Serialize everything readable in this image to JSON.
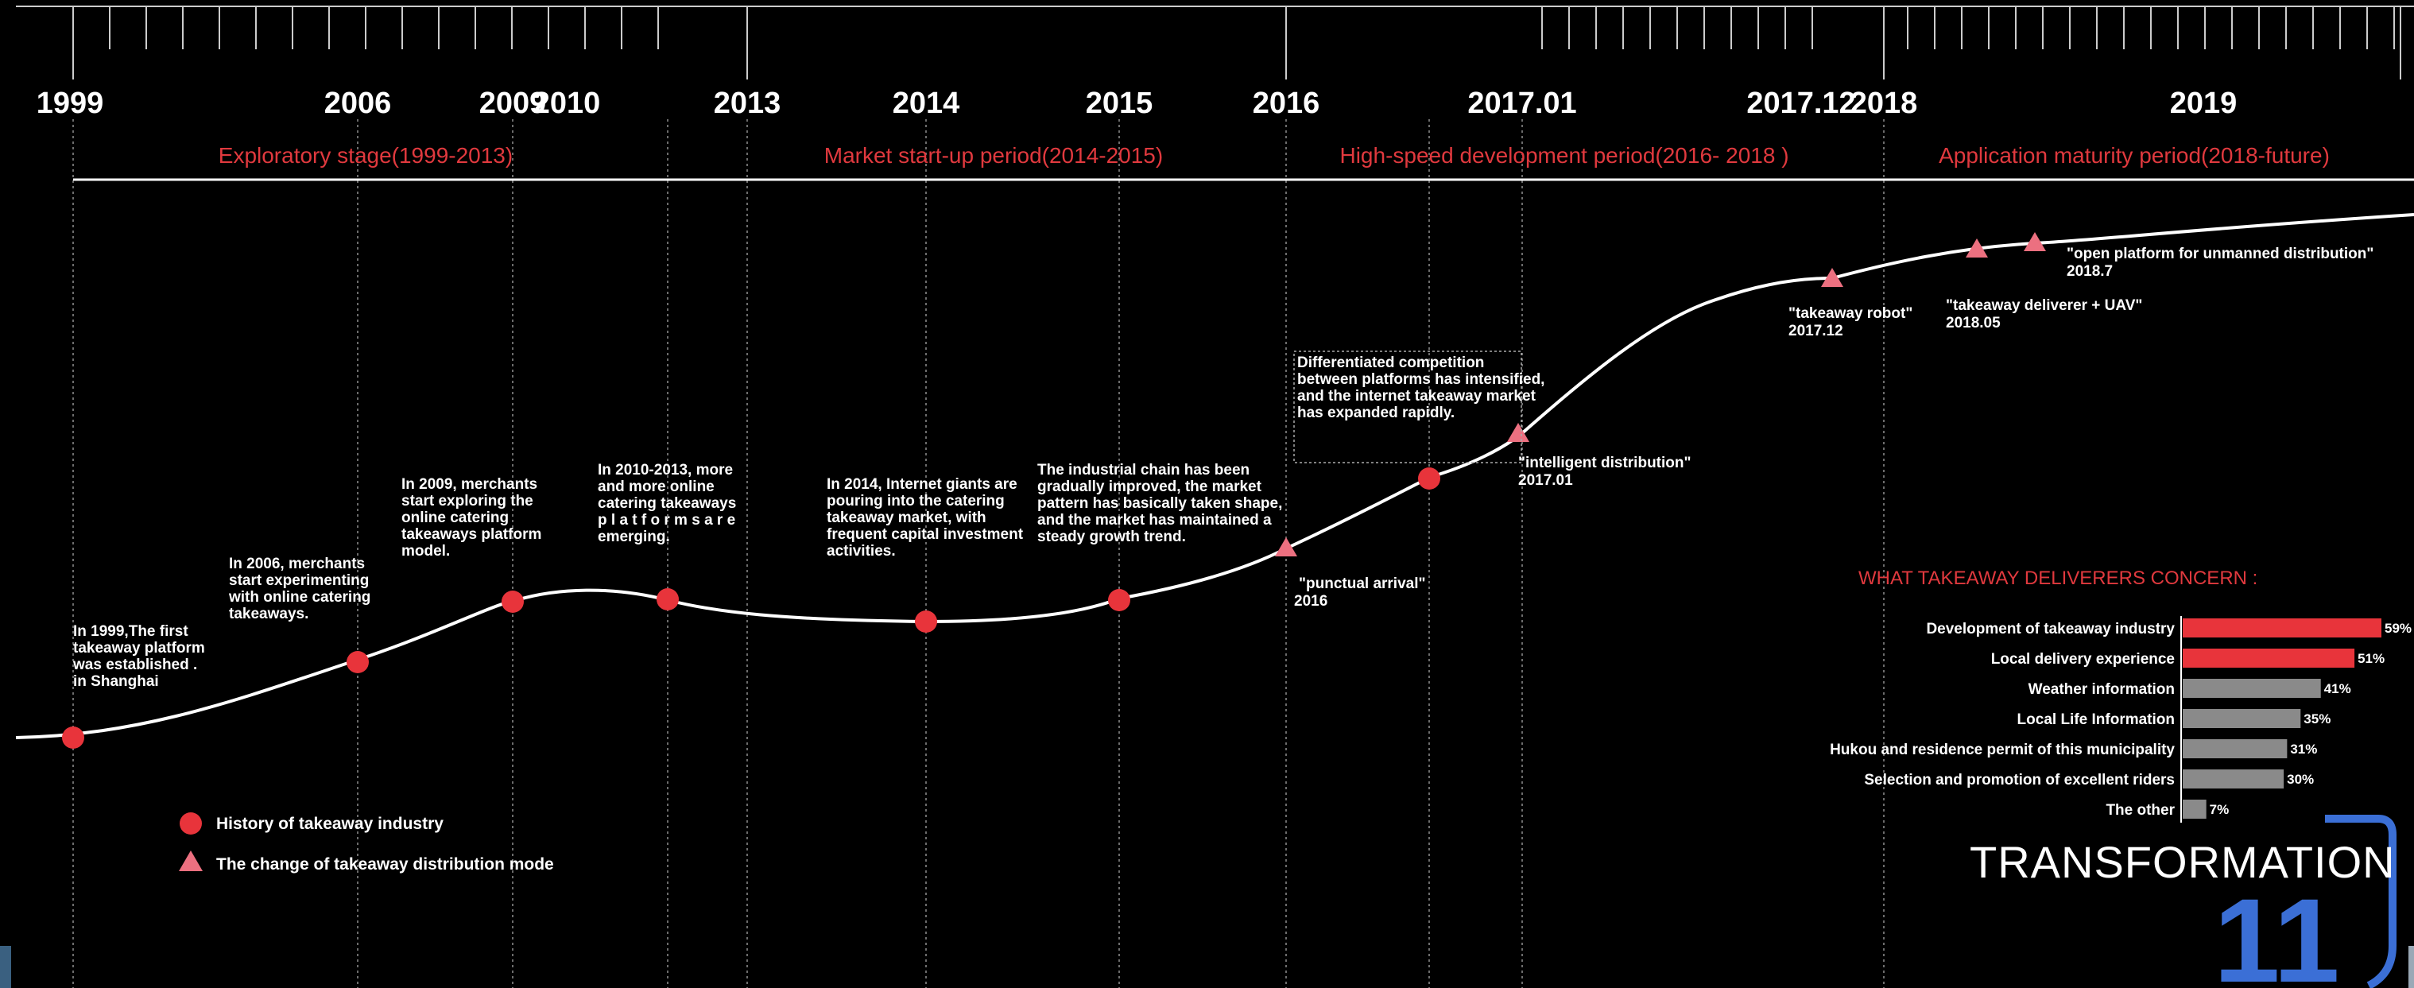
{
  "years": [
    {
      "id": "y1999",
      "label": "1999"
    },
    {
      "id": "y2006",
      "label": "2006"
    },
    {
      "id": "y2009",
      "label": "2009"
    },
    {
      "id": "y2010",
      "label": "2010"
    },
    {
      "id": "y2013",
      "label": "2013"
    },
    {
      "id": "y2014",
      "label": "2014"
    },
    {
      "id": "y2015",
      "label": "2015"
    },
    {
      "id": "y2016",
      "label": "2016"
    },
    {
      "id": "y201701",
      "label": "2017.01"
    },
    {
      "id": "y201712",
      "label": "2017.12"
    },
    {
      "id": "y2018",
      "label": "2018"
    },
    {
      "id": "y2019",
      "label": "2019"
    }
  ],
  "stages": [
    "Exploratory stage(1999-2013)",
    "Market start-up period(2014-2015)",
    "High-speed development period(2016- 2018 )",
    "Application maturity period(2018-future)"
  ],
  "history_events": [
    {
      "year": "1999",
      "lines": [
        "In 1999,The first",
        "takeaway platform",
        "was established .",
        "in Shanghai"
      ]
    },
    {
      "year": "2006",
      "lines": [
        "In 2006, merchants",
        "start experimenting",
        "with online catering",
        "takeaways."
      ]
    },
    {
      "year": "2009",
      "lines": [
        "In 2009, merchants",
        "start exploring the",
        "online catering",
        "takeaways platform",
        "model."
      ]
    },
    {
      "year": "2010-2013",
      "lines": [
        "In 2010-2013, more",
        "and more online",
        "catering takeaways",
        "p l a t f o r m s  a r e",
        "emerging."
      ]
    },
    {
      "year": "2014",
      "lines": [
        "In 2014, Internet giants are",
        "pouring into the catering",
        "takeaway market, with",
        "frequent capital investment",
        "activities."
      ]
    },
    {
      "year": "2015",
      "lines": [
        "The industrial chain has been",
        "gradually improved, the market",
        "pattern has basically taken shape,",
        "and the market has maintained a",
        "steady growth trend."
      ]
    },
    {
      "year": "2016",
      "lines": [
        "Differentiated competition",
        "between platforms has intensified,",
        "and the internet takeaway market",
        "has expanded rapidly."
      ]
    }
  ],
  "distribution_modes": [
    {
      "name": "\"punctual arrival\"",
      "date": "2016"
    },
    {
      "name": "\"intelligent distribution\"",
      "date": "2017.01"
    },
    {
      "name": "\"takeaway robot\"",
      "date": "2017.12"
    },
    {
      "name": "\"takeaway deliverer + UAV\"",
      "date": "2018.05"
    },
    {
      "name": "\"open platform for unmanned distribution\"",
      "date": "2018.7"
    }
  ],
  "legend": {
    "history": "History of takeaway industry",
    "mode": "The change of takeaway distribution mode"
  },
  "colors": {
    "history_marker": "#e8343b",
    "mode_marker": "#ec7080",
    "stage_text": "#e0393e",
    "bar_highlight": "#e8343b",
    "bar_normal": "#8a8a8a",
    "brand_accent": "#3b6fd6"
  },
  "chart_data": {
    "type": "bar",
    "title": "WHAT TAKEAWAY DELIVERERS CONCERN :",
    "categories": [
      "Development of takeaway industry",
      "Local delivery experience",
      "Weather information",
      "Local Life Information",
      "Hukou and residence permit of this municipality",
      "Selection and promotion of excellent riders",
      "The other"
    ],
    "values": [
      59,
      51,
      41,
      35,
      31,
      30,
      7
    ],
    "value_labels": [
      "59%",
      "51%",
      "41%",
      "35%",
      "31%",
      "30%",
      "7%"
    ],
    "highlighted": [
      true,
      true,
      false,
      false,
      false,
      false,
      false
    ],
    "orientation": "horizontal",
    "xlim": [
      0,
      59
    ]
  },
  "brand": {
    "word": "TRANSFORMATION",
    "number": "11"
  }
}
